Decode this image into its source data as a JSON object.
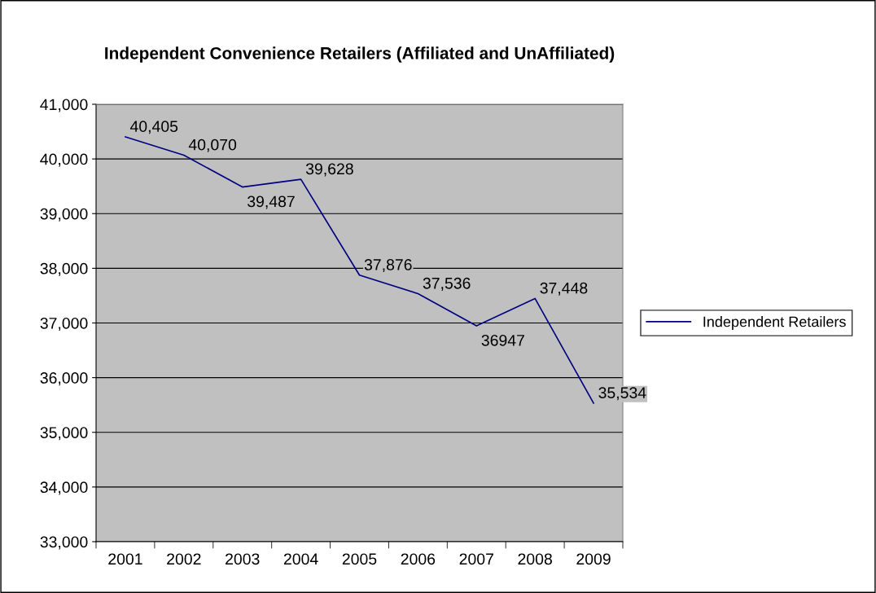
{
  "chart_data": {
    "type": "line",
    "title": "Independent Convenience Retailers (Affiliated and UnAffiliated)",
    "categories": [
      "2001",
      "2002",
      "2003",
      "2004",
      "2005",
      "2006",
      "2007",
      "2008",
      "2009"
    ],
    "series": [
      {
        "name": "Independent Retailers",
        "color": "#000080",
        "values": [
          40405,
          40070,
          39487,
          39628,
          37876,
          37536,
          36947,
          37448,
          35534
        ],
        "value_labels": [
          "40,405",
          "40,070",
          "39,487",
          "39,628",
          "37,876",
          "37,536",
          "36947",
          "37,448",
          "35,534"
        ]
      }
    ],
    "ylim": [
      33000,
      41000
    ],
    "yticks": [
      {
        "value": 33000,
        "label": "33,000"
      },
      {
        "value": 34000,
        "label": "34,000"
      },
      {
        "value": 35000,
        "label": "35,000"
      },
      {
        "value": 36000,
        "label": "36,000"
      },
      {
        "value": 37000,
        "label": "37,000"
      },
      {
        "value": 38000,
        "label": "38,000"
      },
      {
        "value": 39000,
        "label": "39,000"
      },
      {
        "value": 40000,
        "label": "40,000"
      },
      {
        "value": 41000,
        "label": "41,000"
      }
    ],
    "grid": "y",
    "legend": "right",
    "marker": "none",
    "line_style": "solid"
  }
}
